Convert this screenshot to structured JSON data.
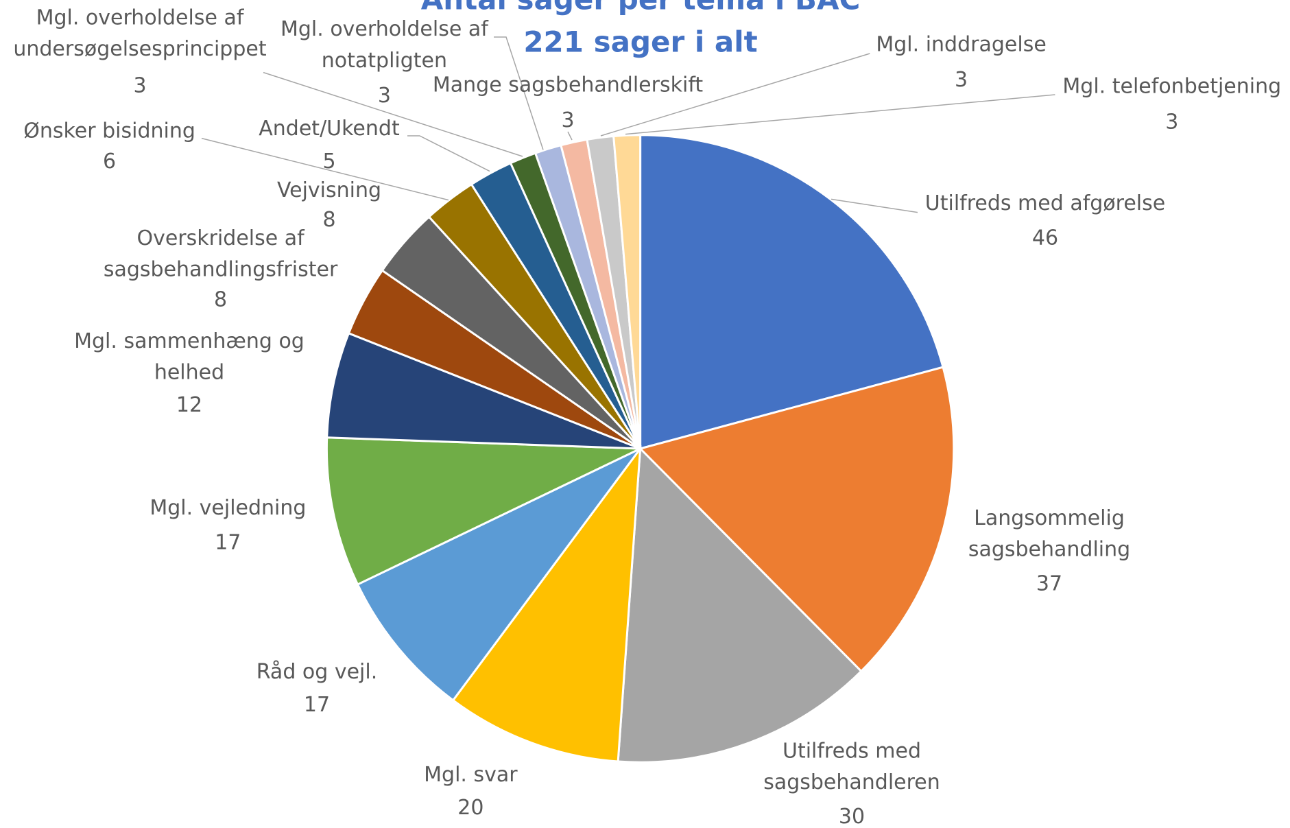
{
  "chart_data": {
    "type": "pie",
    "title": "Antal sager per tema i BAC",
    "subtitle": "221 sager i alt",
    "categories": [
      "Utilfreds med afgørelse",
      "Langsommelig sagsbehandling",
      "Utilfreds med sagsbehandleren",
      "Mgl. svar",
      "Råd og vejl.",
      "Mgl. vejledning",
      "Mgl. sammenhæng og helhed",
      "Overskridelse af sagsbehandlingsfrister",
      "Vejvisning",
      "Ønsker bisidning",
      "Andet/Ukendt",
      "Mgl. overholdelse af undersøgelsesprincippet",
      "Mgl. overholdelse af notatpligten",
      "Mange sagsbehandlerskift",
      "Mgl. inddragelse",
      "Mgl. telefonbetjening"
    ],
    "values": [
      46,
      37,
      30,
      20,
      17,
      17,
      12,
      8,
      8,
      6,
      5,
      3,
      3,
      3,
      3,
      3
    ],
    "colors": [
      "#4472c4",
      "#ed7d31",
      "#a5a5a5",
      "#ffc000",
      "#5b9bd5",
      "#70ad47",
      "#264478",
      "#9e480e",
      "#636363",
      "#997300",
      "#255e91",
      "#43682b",
      "#a9b7de",
      "#f4b9a2",
      "#c9c9c9",
      "#ffd996"
    ]
  }
}
